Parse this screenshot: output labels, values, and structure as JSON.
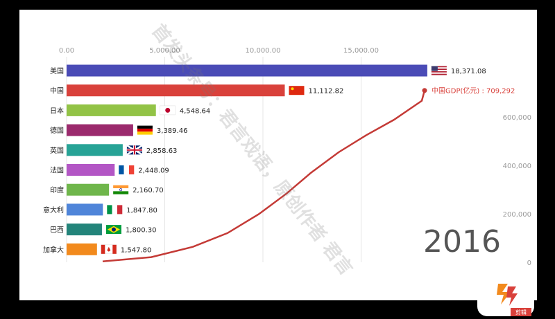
{
  "chart_data": {
    "type": "bar",
    "orientation": "horizontal",
    "year": "2016",
    "categories": [
      "美国",
      "中国",
      "日本",
      "德国",
      "英国",
      "法国",
      "印度",
      "意大利",
      "巴西",
      "加拿大"
    ],
    "values": [
      18371.08,
      11112.82,
      4548.64,
      3389.46,
      2858.63,
      2448.09,
      2160.7,
      1847.8,
      1800.3,
      1547.8
    ],
    "value_labels": [
      "18,371.08",
      "11,112.82",
      "4,548.64",
      "3,389.46",
      "2,858.63",
      "2,448.09",
      "2,160.70",
      "1,847.80",
      "1,800.30",
      "1,547.80"
    ],
    "bar_colors": [
      "#4a4bb6",
      "#d9413b",
      "#92c346",
      "#9b2a6d",
      "#27a396",
      "#b356c5",
      "#6fb64b",
      "#4f85d9",
      "#23847a",
      "#f28a1d"
    ],
    "flags": [
      "us-flag",
      "china-flag",
      "japan-flag",
      "germany-flag",
      "uk-flag",
      "france-flag",
      "india-flag",
      "italy-flag",
      "brazil-flag",
      "canada-flag"
    ],
    "x_ticks": [
      "0.00",
      "5,000.00",
      "10,000.00",
      "15,000.00"
    ],
    "xlim": [
      0,
      18700
    ],
    "grid": true,
    "secondary": {
      "type": "line",
      "color": "#c43a36",
      "right_ticks": [
        "0",
        "200,000",
        "400,000",
        "600,000"
      ],
      "ylim": [
        0,
        709292
      ],
      "annotation": "中国GDP(亿元) : 709,292",
      "endpoint_value": 709292
    }
  },
  "watermark": "首发头条号：君言戏语，原创作者 君言",
  "logo_badge": "剪辑"
}
